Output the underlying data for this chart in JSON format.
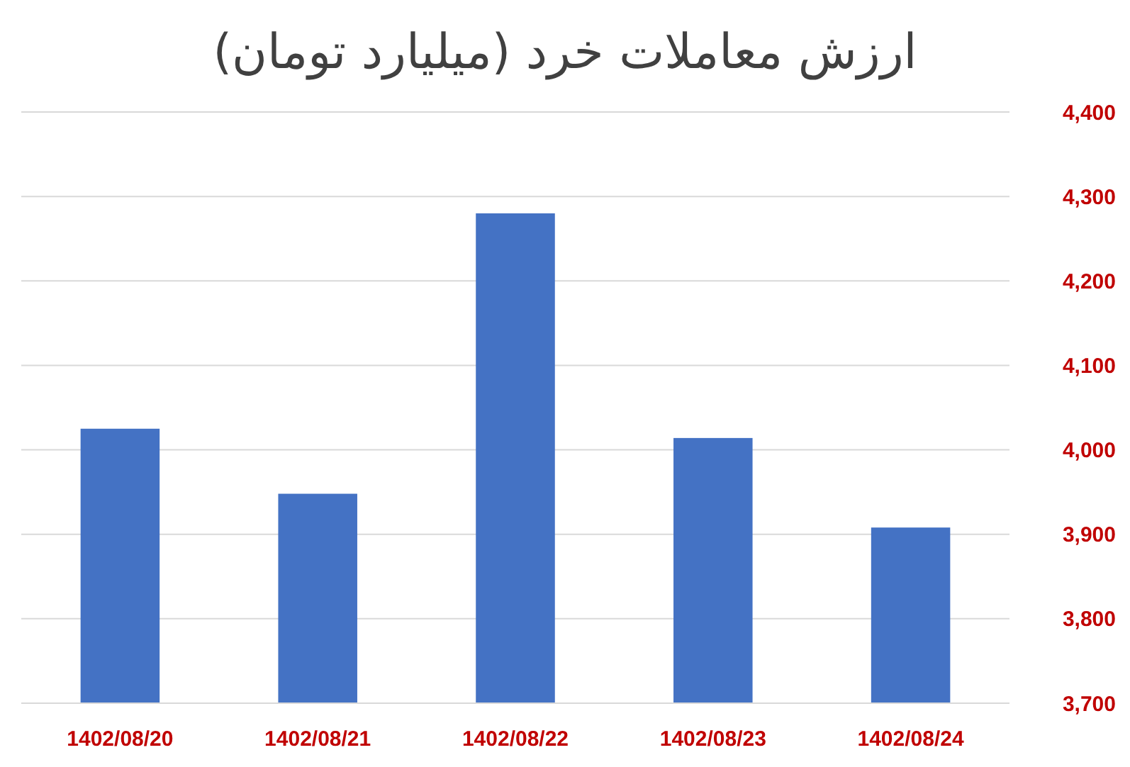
{
  "chart_data": {
    "type": "bar",
    "title": "ارزش معاملات خرد (میلیارد تومان)",
    "categories": [
      "1402/08/20",
      "1402/08/21",
      "1402/08/22",
      "1402/08/23",
      "1402/08/24"
    ],
    "values": [
      4025,
      3948,
      4280,
      4014,
      3908
    ],
    "color": "#4472c4",
    "ylim": [
      3700,
      4400
    ],
    "yticks": [
      {
        "value": 3700,
        "label": "3,700"
      },
      {
        "value": 3800,
        "label": "3,800"
      },
      {
        "value": 3900,
        "label": "3,900"
      },
      {
        "value": 4000,
        "label": "4,000"
      },
      {
        "value": 4100,
        "label": "4,100"
      },
      {
        "value": 4200,
        "label": "4,200"
      },
      {
        "value": 4300,
        "label": "4,300"
      },
      {
        "value": 4400,
        "label": "4,400"
      }
    ],
    "grid": true
  }
}
